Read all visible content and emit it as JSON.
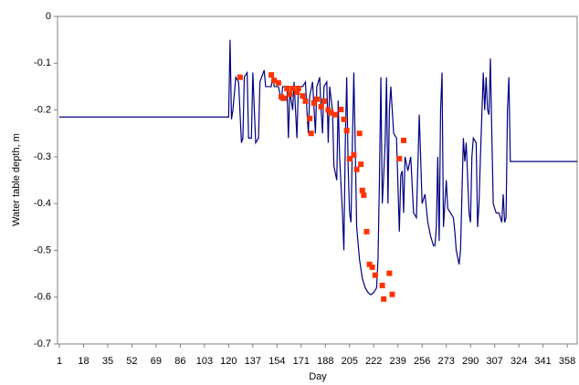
{
  "chart_data": {
    "type": "line",
    "x_label": "Day",
    "y_label": "Water table depth, m",
    "xlim": [
      1,
      365
    ],
    "xticks": [
      1,
      18,
      35,
      52,
      69,
      86,
      103,
      120,
      137,
      154,
      171,
      188,
      205,
      222,
      239,
      256,
      273,
      290,
      307,
      324,
      341,
      358
    ],
    "ylim": [
      -0.7,
      0
    ],
    "yticks": [
      -0.7,
      -0.6,
      -0.5,
      -0.4,
      -0.3,
      -0.2,
      -0.1,
      0
    ],
    "series": [
      {
        "type": "line",
        "color": "#000080",
        "x": [
          1,
          120,
          121,
          122,
          123,
          125,
          127,
          129,
          130,
          131,
          133,
          134,
          136,
          137,
          139,
          141,
          142,
          145,
          146,
          150,
          151,
          152,
          155,
          157,
          158,
          161,
          162,
          163,
          165,
          166,
          168,
          169,
          172,
          174,
          175,
          176,
          177,
          179,
          181,
          182,
          184,
          185,
          186,
          187,
          189,
          190,
          191,
          193,
          194,
          196,
          197,
          198,
          200,
          201,
          202,
          203,
          204,
          205,
          206,
          207,
          208,
          209,
          210,
          212,
          214,
          216,
          218,
          220,
          222,
          224,
          225,
          226,
          227,
          228,
          229,
          230,
          231,
          232,
          233,
          234,
          236,
          238,
          240,
          241,
          242,
          243,
          244,
          246,
          248,
          250,
          252,
          254,
          256,
          258,
          260,
          262,
          264,
          265,
          266,
          267,
          268,
          269,
          270,
          271,
          272,
          273,
          274,
          276,
          278,
          279,
          280,
          282,
          283,
          285,
          286,
          287,
          289,
          290,
          291,
          292,
          294,
          295,
          296,
          297,
          299,
          300,
          301,
          302,
          303,
          304,
          305,
          306,
          308,
          310,
          312,
          313,
          314,
          315,
          316,
          317,
          318,
          365
        ],
        "values": [
          -0.215,
          -0.215,
          -0.05,
          -0.22,
          -0.2,
          -0.13,
          -0.14,
          -0.27,
          -0.26,
          -0.13,
          -0.12,
          -0.26,
          -0.26,
          -0.12,
          -0.27,
          -0.26,
          -0.14,
          -0.115,
          -0.15,
          -0.15,
          -0.12,
          -0.15,
          -0.15,
          -0.18,
          -0.15,
          -0.15,
          -0.26,
          -0.16,
          -0.2,
          -0.14,
          -0.26,
          -0.15,
          -0.15,
          -0.14,
          -0.2,
          -0.25,
          -0.17,
          -0.14,
          -0.25,
          -0.15,
          -0.13,
          -0.2,
          -0.25,
          -0.15,
          -0.14,
          -0.27,
          -0.15,
          -0.2,
          -0.32,
          -0.35,
          -0.18,
          -0.3,
          -0.42,
          -0.5,
          -0.27,
          -0.13,
          -0.32,
          -0.42,
          -0.44,
          -0.27,
          -0.12,
          -0.28,
          -0.45,
          -0.52,
          -0.56,
          -0.58,
          -0.59,
          -0.595,
          -0.59,
          -0.58,
          -0.52,
          -0.35,
          -0.13,
          -0.4,
          -0.34,
          -0.27,
          -0.13,
          -0.4,
          -0.2,
          -0.15,
          -0.25,
          -0.26,
          -0.46,
          -0.34,
          -0.33,
          -0.42,
          -0.3,
          -0.33,
          -0.3,
          -0.42,
          -0.43,
          -0.21,
          -0.4,
          -0.38,
          -0.44,
          -0.47,
          -0.49,
          -0.49,
          -0.45,
          -0.3,
          -0.48,
          -0.2,
          -0.12,
          -0.45,
          -0.4,
          -0.35,
          -0.41,
          -0.42,
          -0.43,
          -0.46,
          -0.5,
          -0.53,
          -0.5,
          -0.26,
          -0.31,
          -0.27,
          -0.42,
          -0.44,
          -0.3,
          -0.26,
          -0.27,
          -0.45,
          -0.4,
          -0.3,
          -0.12,
          -0.2,
          -0.13,
          -0.2,
          -0.21,
          -0.09,
          -0.25,
          -0.4,
          -0.42,
          -0.42,
          -0.44,
          -0.38,
          -0.44,
          -0.43,
          -0.2,
          -0.13,
          -0.31,
          -0.31
        ]
      },
      {
        "type": "scatter",
        "color": "#ff3300",
        "x": [
          128,
          150,
          152,
          155,
          157,
          159,
          161,
          163,
          165,
          168,
          169,
          172,
          174,
          177,
          178,
          180,
          182,
          185,
          187,
          190,
          192,
          195,
          199,
          201,
          203,
          205,
          208,
          210,
          212,
          213,
          214,
          215,
          217,
          219,
          221,
          223,
          228,
          229,
          233,
          235,
          240,
          243
        ],
        "values": [
          -0.13,
          -0.125,
          -0.137,
          -0.142,
          -0.172,
          -0.175,
          -0.154,
          -0.166,
          -0.154,
          -0.162,
          -0.154,
          -0.17,
          -0.181,
          -0.218,
          -0.25,
          -0.185,
          -0.177,
          -0.193,
          -0.181,
          -0.2,
          -0.206,
          -0.21,
          -0.199,
          -0.22,
          -0.244,
          -0.304,
          -0.296,
          -0.327,
          -0.25,
          -0.316,
          -0.372,
          -0.382,
          -0.46,
          -0.53,
          -0.536,
          -0.553,
          -0.575,
          -0.604,
          -0.549,
          -0.594,
          -0.304,
          -0.265
        ]
      }
    ]
  }
}
